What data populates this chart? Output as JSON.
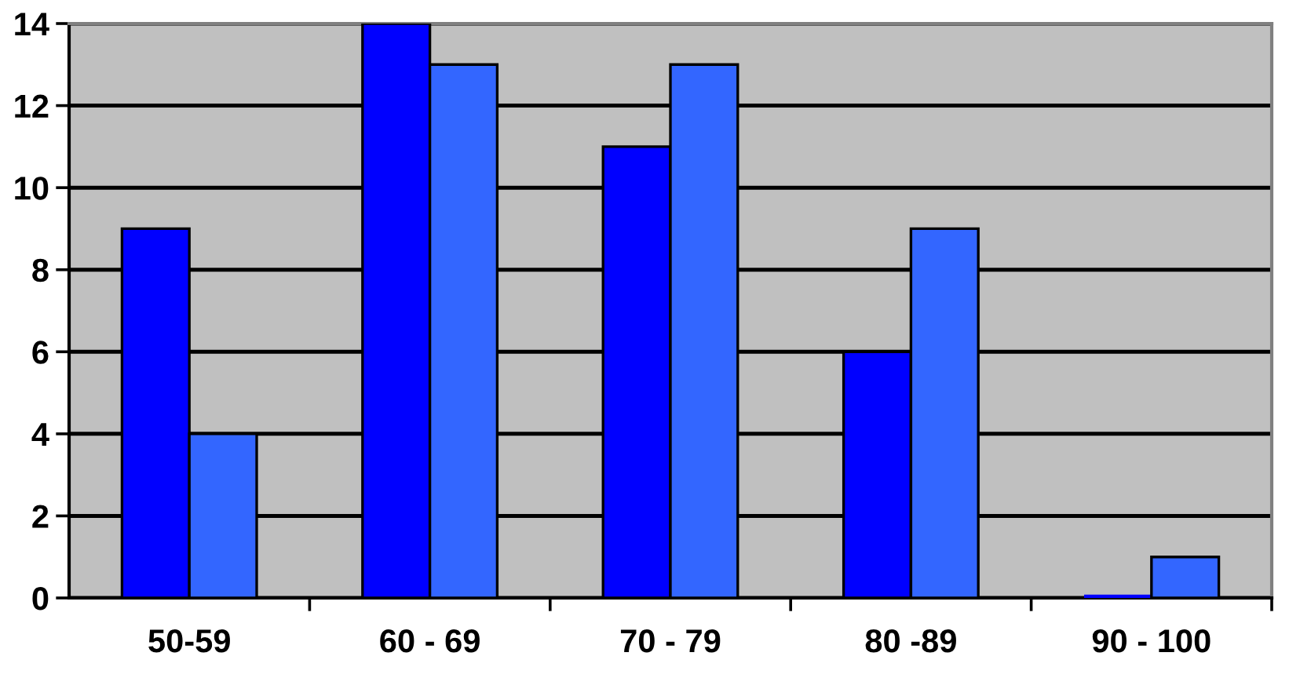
{
  "chart_data": {
    "type": "bar",
    "categories": [
      "50-59",
      "60 - 69",
      "70 - 79",
      "80 -89",
      "90 - 100"
    ],
    "series": [
      {
        "color": "#0000ff",
        "values": [
          9,
          14,
          11,
          6,
          0
        ]
      },
      {
        "color": "#3366ff",
        "values": [
          4,
          13,
          13,
          9,
          1
        ]
      }
    ],
    "ylim": [
      0,
      14
    ],
    "yticks": [
      0,
      2,
      4,
      6,
      8,
      10,
      12,
      14
    ],
    "grid": "y"
  }
}
